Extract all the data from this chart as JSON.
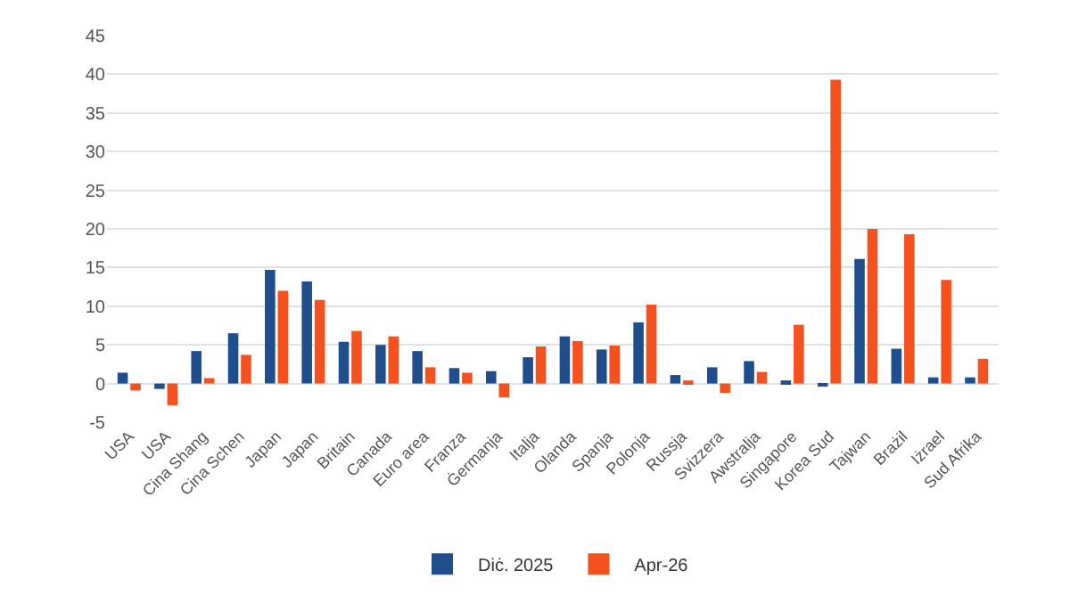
{
  "chart_data": {
    "type": "bar",
    "categories": [
      "USA",
      "USA",
      "Cina Shang",
      "Cina Schen",
      "Japan",
      "Japan",
      "Britain",
      "Canada",
      "Euro area",
      "Franza",
      "Ġermanja",
      "Italja",
      "Olanda",
      "Spanja",
      "Polonja",
      "Russja",
      "Svizzera",
      "Awstralja",
      "Singapore",
      "Korea Sud",
      "Tajwan",
      "Brażil",
      "Iżrael",
      "Sud Afrika"
    ],
    "series": [
      {
        "name": "Diċ. 2025",
        "color": "#1f4e8c",
        "values": [
          1.4,
          -0.7,
          4.2,
          6.5,
          14.7,
          13.2,
          5.4,
          5.0,
          4.2,
          2.0,
          1.6,
          3.4,
          6.1,
          4.4,
          7.9,
          1.1,
          2.1,
          2.9,
          0.4,
          -0.4,
          16.1,
          4.5,
          0.8,
          0.8
        ]
      },
      {
        "name": "Apr-26",
        "color": "#f4511e",
        "values": [
          -0.9,
          -2.8,
          0.7,
          3.7,
          12.0,
          10.8,
          6.8,
          6.1,
          2.1,
          1.4,
          -1.8,
          4.8,
          5.5,
          4.9,
          10.2,
          0.4,
          -1.2,
          1.5,
          7.6,
          39.3,
          20.0,
          19.3,
          13.4,
          3.2
        ]
      }
    ],
    "ylim": [
      -5,
      45
    ],
    "yticks": [
      -5,
      0,
      5,
      10,
      15,
      20,
      25,
      30,
      35,
      40,
      45
    ],
    "grid": "y",
    "legend": "bottom"
  }
}
